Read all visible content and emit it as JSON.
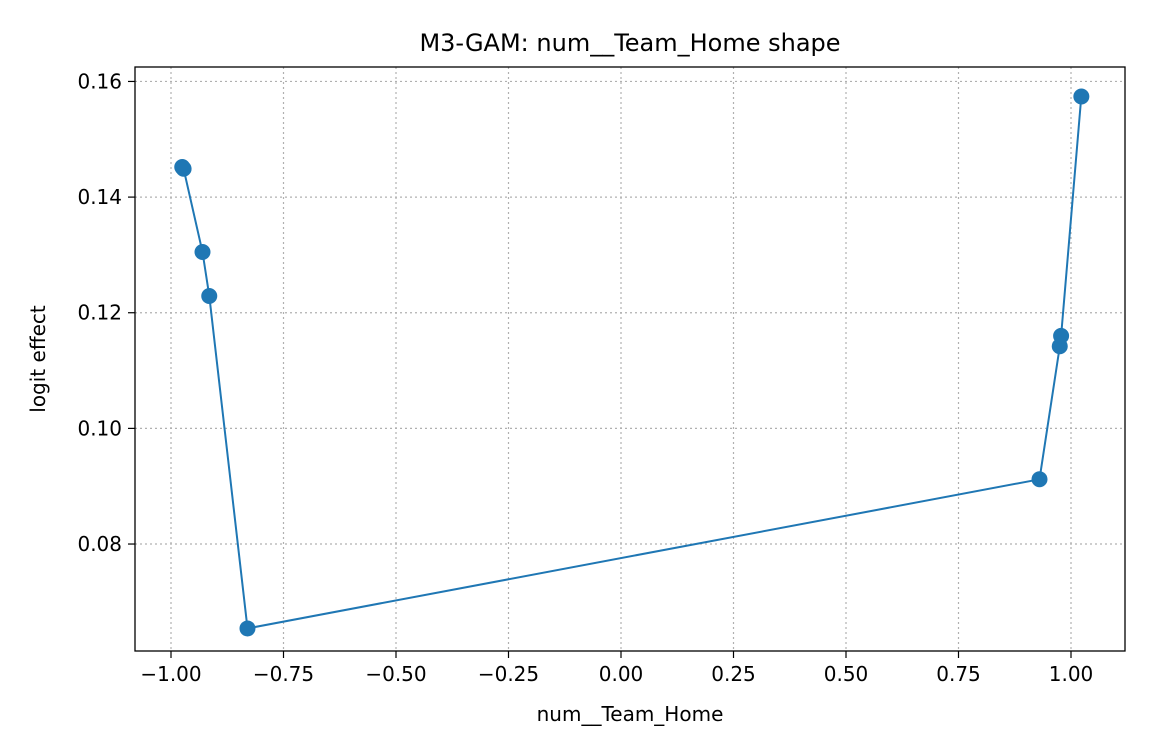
{
  "chart_data": {
    "type": "line",
    "title": "M3-GAM: num__Team_Home shape",
    "xlabel": "num__Team_Home",
    "ylabel": "logit effect",
    "xlim": [
      -1.08,
      1.12
    ],
    "ylim": [
      0.0615,
      0.1625
    ],
    "xticks": [
      -1.0,
      -0.75,
      -0.5,
      -0.25,
      0.0,
      0.25,
      0.5,
      0.75,
      1.0
    ],
    "xtick_labels": [
      "−1.00",
      "−0.75",
      "−0.50",
      "−0.25",
      "0.00",
      "0.25",
      "0.50",
      "0.75",
      "1.00"
    ],
    "yticks": [
      0.08,
      0.1,
      0.12,
      0.14,
      0.16
    ],
    "ytick_labels": [
      "0.08",
      "0.10",
      "0.12",
      "0.14",
      "0.16"
    ],
    "grid": true,
    "line_color": "#1f77b4",
    "marker": "circle",
    "series": [
      {
        "x": [
          -0.975,
          -0.972,
          -0.93,
          -0.915,
          -0.83,
          0.93,
          0.975,
          0.978,
          1.023
        ],
        "y": [
          0.1452,
          0.1449,
          0.1305,
          0.1229,
          0.0654,
          0.0912,
          0.1142,
          0.116,
          0.1574
        ]
      }
    ]
  }
}
